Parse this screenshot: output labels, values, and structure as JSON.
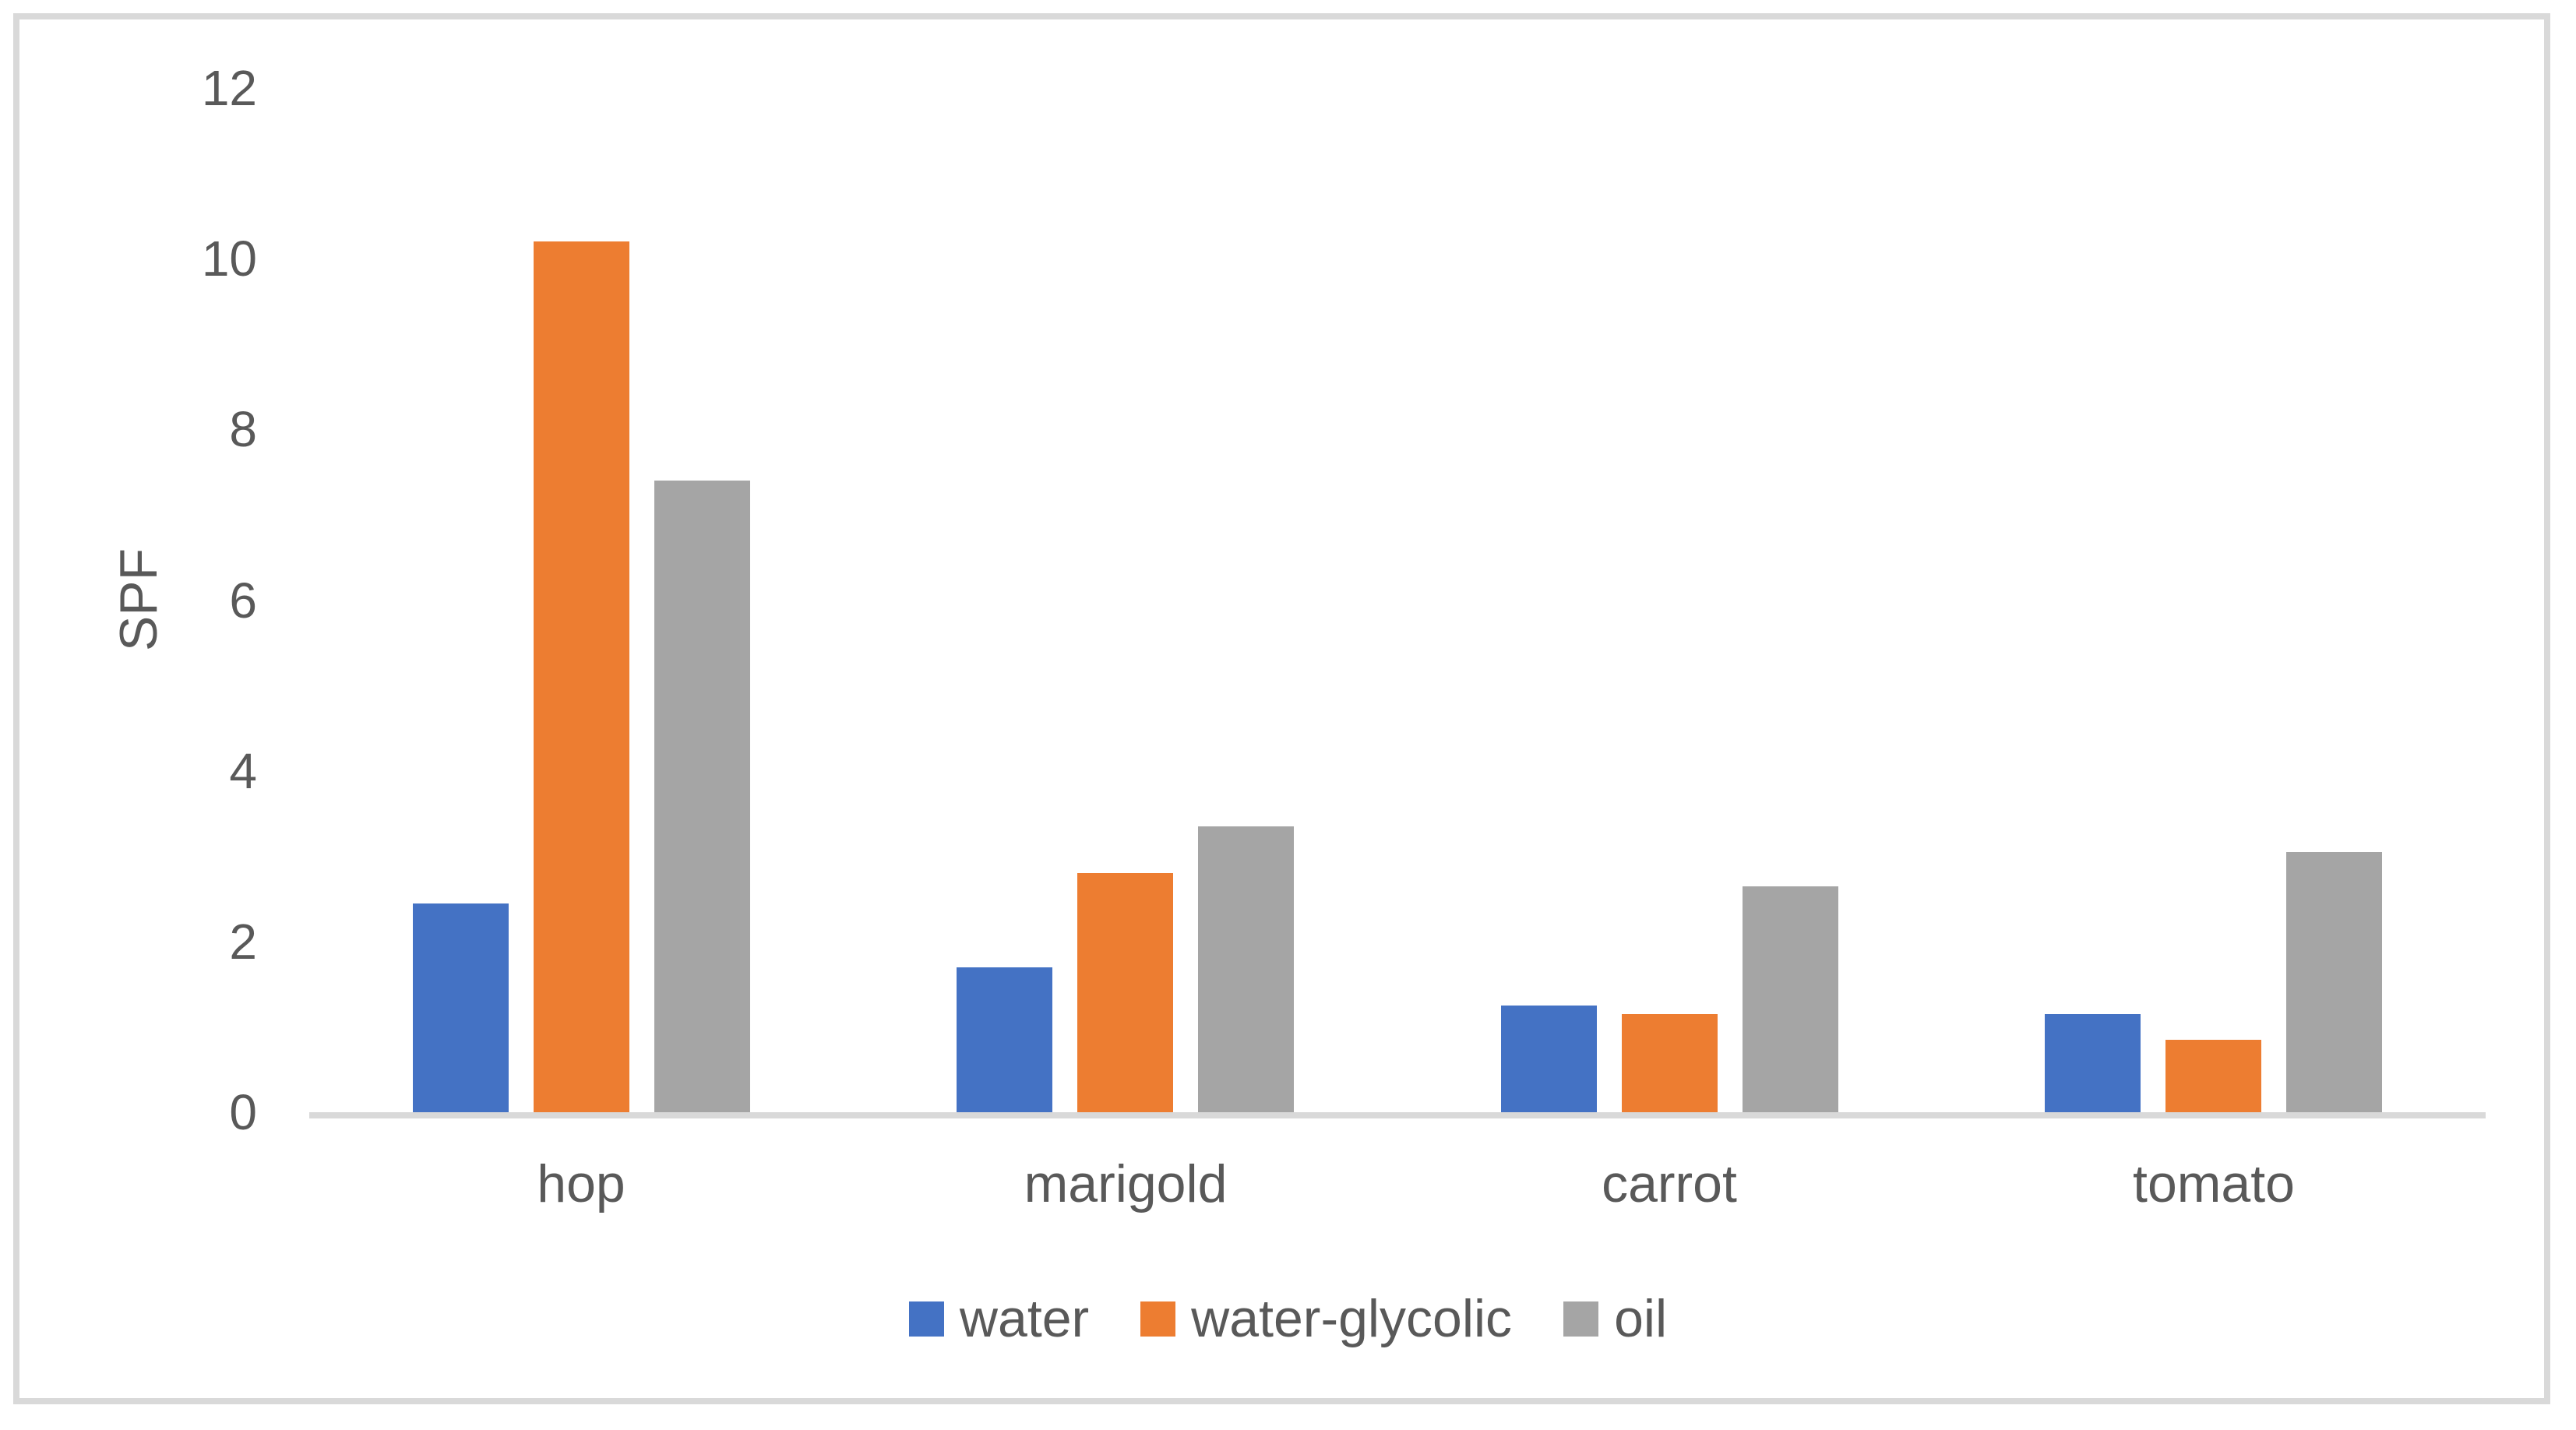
{
  "figure": {
    "background_color": "#FFFFFF",
    "border_color": "#D9D9D9",
    "text_color": "#595959",
    "axis_line_color": "#D9D9D9"
  },
  "chart_data": {
    "type": "bar",
    "title": "",
    "xlabel": "",
    "ylabel": "SPF",
    "ylim": [
      0,
      12
    ],
    "yticks": [
      0,
      2,
      4,
      6,
      8,
      10,
      12
    ],
    "grid": false,
    "legend_position": "bottom",
    "categories": [
      "hop",
      "marigold",
      "carrot",
      "tomato"
    ],
    "series": [
      {
        "name": "water",
        "color": "#4472C4",
        "values": [
          2.45,
          1.7,
          1.25,
          1.15
        ]
      },
      {
        "name": "water-glycolic",
        "color": "#ED7D31",
        "values": [
          10.2,
          2.8,
          1.15,
          0.85
        ]
      },
      {
        "name": "oil",
        "color": "#A5A5A5",
        "values": [
          7.4,
          3.35,
          2.65,
          3.05
        ]
      }
    ]
  }
}
